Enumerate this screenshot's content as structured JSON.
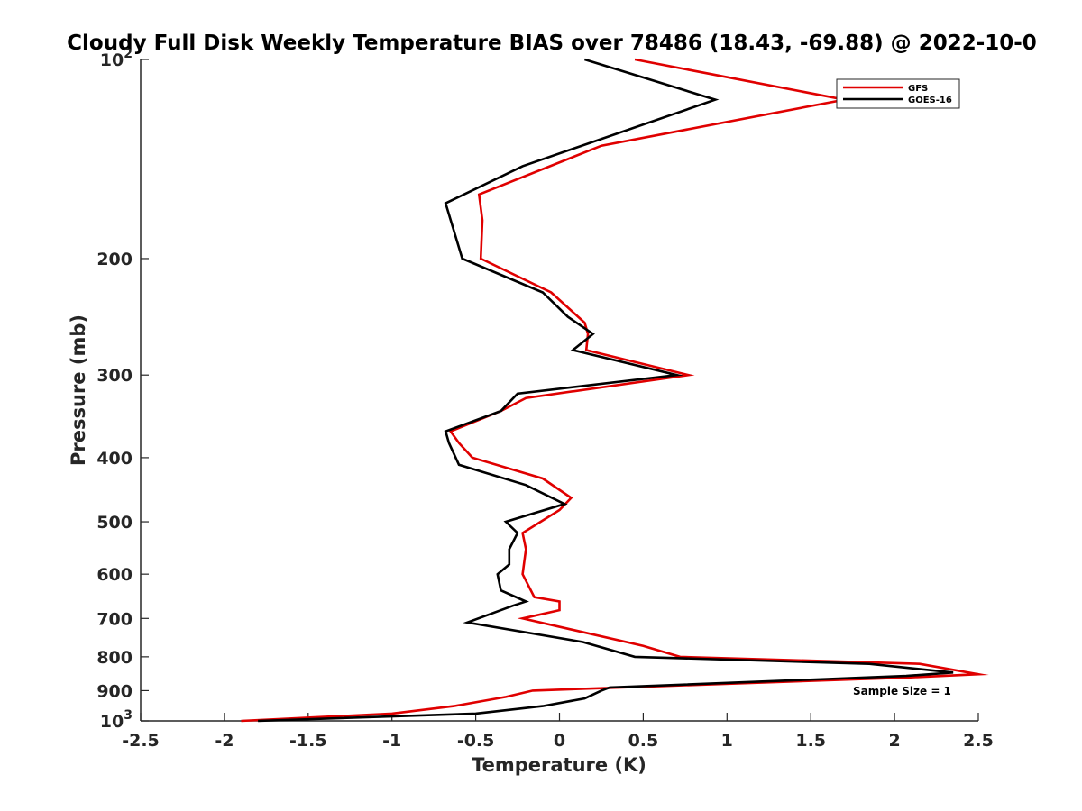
{
  "chart_data": {
    "type": "line",
    "title": "Cloudy Full Disk Weekly Temperature BIAS over 78486 (18.43, -69.88) @ 2022-10-0",
    "xlabel": "Temperature (K)",
    "ylabel": "Pressure (mb)",
    "xlim": [
      -2.5,
      2.5
    ],
    "ylim": [
      100,
      1000
    ],
    "yscale": "log",
    "y_reversed": true,
    "xticks": [
      "-2.5",
      "-2",
      "-1.5",
      "-1",
      "-0.5",
      "0",
      "0.5",
      "1",
      "1.5",
      "2",
      "2.5"
    ],
    "yticks": [
      {
        "value": 100,
        "base": "10",
        "exp": "2"
      },
      {
        "value": 200,
        "label": "200"
      },
      {
        "value": 300,
        "label": "300"
      },
      {
        "value": 400,
        "label": "400"
      },
      {
        "value": 500,
        "label": "500"
      },
      {
        "value": 600,
        "label": "600"
      },
      {
        "value": 700,
        "label": "700"
      },
      {
        "value": 800,
        "label": "800"
      },
      {
        "value": 900,
        "label": "900"
      },
      {
        "value": 1000,
        "base": "10",
        "exp": "3"
      }
    ],
    "legend_position": "top-right",
    "annotation": "Sample Size = 1",
    "series": [
      {
        "name": "GFS",
        "color": "#e00000",
        "points": [
          [
            0.45,
            100
          ],
          [
            1.7,
            115
          ],
          [
            0.25,
            135
          ],
          [
            -0.48,
            160
          ],
          [
            -0.46,
            175
          ],
          [
            -0.47,
            200
          ],
          [
            -0.05,
            225
          ],
          [
            0.15,
            250
          ],
          [
            0.17,
            260
          ],
          [
            0.16,
            275
          ],
          [
            0.77,
            300
          ],
          [
            -0.2,
            325
          ],
          [
            -0.35,
            340
          ],
          [
            -0.65,
            365
          ],
          [
            -0.6,
            380
          ],
          [
            -0.52,
            400
          ],
          [
            -0.1,
            430
          ],
          [
            0.07,
            460
          ],
          [
            0.0,
            480
          ],
          [
            -0.22,
            520
          ],
          [
            -0.2,
            550
          ],
          [
            -0.22,
            600
          ],
          [
            -0.15,
            650
          ],
          [
            0.0,
            660
          ],
          [
            0.0,
            680
          ],
          [
            -0.22,
            700
          ],
          [
            0.5,
            770
          ],
          [
            0.72,
            800
          ],
          [
            2.15,
            820
          ],
          [
            2.5,
            850
          ],
          [
            2.07,
            860
          ],
          [
            -0.16,
            900
          ],
          [
            -0.32,
            920
          ],
          [
            -0.63,
            950
          ],
          [
            -1.0,
            975
          ],
          [
            -1.9,
            1000
          ]
        ]
      },
      {
        "name": "GOES-16",
        "color": "#000000",
        "points": [
          [
            0.15,
            100
          ],
          [
            0.93,
            115
          ],
          [
            -0.22,
            145
          ],
          [
            -0.68,
            165
          ],
          [
            -0.58,
            200
          ],
          [
            -0.1,
            225
          ],
          [
            0.05,
            245
          ],
          [
            0.2,
            260
          ],
          [
            0.08,
            275
          ],
          [
            0.7,
            300
          ],
          [
            -0.25,
            320
          ],
          [
            -0.35,
            340
          ],
          [
            -0.68,
            365
          ],
          [
            -0.66,
            380
          ],
          [
            -0.6,
            410
          ],
          [
            -0.2,
            440
          ],
          [
            0.03,
            470
          ],
          [
            -0.32,
            500
          ],
          [
            -0.25,
            520
          ],
          [
            -0.3,
            550
          ],
          [
            -0.3,
            580
          ],
          [
            -0.37,
            600
          ],
          [
            -0.35,
            635
          ],
          [
            -0.2,
            660
          ],
          [
            -0.28,
            670
          ],
          [
            -0.55,
            710
          ],
          [
            0.14,
            760
          ],
          [
            0.45,
            800
          ],
          [
            1.85,
            820
          ],
          [
            2.35,
            845
          ],
          [
            2.07,
            855
          ],
          [
            0.3,
            890
          ],
          [
            0.25,
            900
          ],
          [
            0.15,
            925
          ],
          [
            -0.1,
            950
          ],
          [
            -0.5,
            975
          ],
          [
            -1.8,
            1000
          ]
        ]
      }
    ]
  }
}
